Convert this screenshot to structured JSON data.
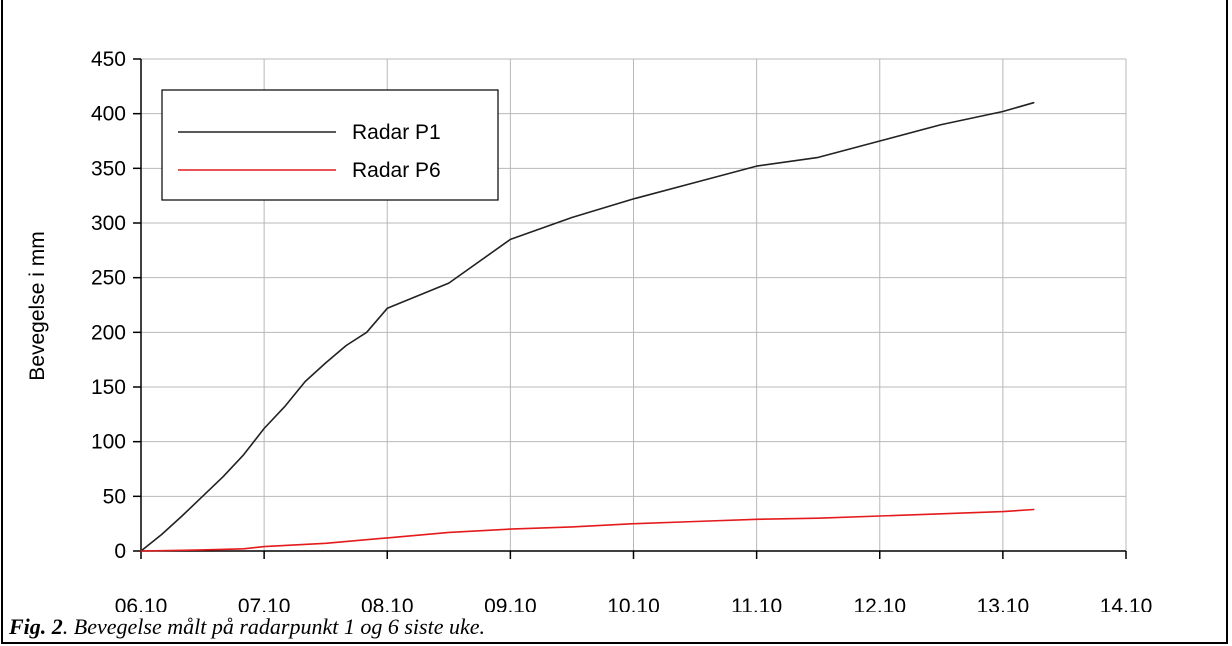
{
  "caption": {
    "label": "Fig. 2",
    "text": ". Bevegelse målt på radarpunkt 1 og 6 siste uke."
  },
  "chart_data": {
    "type": "line",
    "title": "",
    "xlabel": "",
    "ylabel": "Bevegelse i mm",
    "x_tick_labels": [
      "06.10",
      "07.10",
      "08.10",
      "09.10",
      "10.10",
      "11.10",
      "12.10",
      "13.10",
      "14.10"
    ],
    "y_ticks": [
      0,
      50,
      100,
      150,
      200,
      250,
      300,
      350,
      400,
      450
    ],
    "xlim": [
      "06.10",
      "14.10"
    ],
    "ylim": [
      0,
      450
    ],
    "grid": true,
    "legend_position": "top-left",
    "series": [
      {
        "name": "Radar P1",
        "color": "#222222",
        "points": [
          [
            "06.10 00:00",
            0
          ],
          [
            "06.10 04:00",
            15
          ],
          [
            "06.10 08:00",
            32
          ],
          [
            "06.10 12:00",
            50
          ],
          [
            "06.10 16:00",
            68
          ],
          [
            "06.10 20:00",
            88
          ],
          [
            "07.10 00:00",
            112
          ],
          [
            "07.10 04:00",
            132
          ],
          [
            "07.10 08:00",
            155
          ],
          [
            "07.10 12:00",
            172
          ],
          [
            "07.10 16:00",
            188
          ],
          [
            "07.10 20:00",
            200
          ],
          [
            "08.10 00:00",
            222
          ],
          [
            "08.10 12:00",
            245
          ],
          [
            "09.10 00:00",
            285
          ],
          [
            "09.10 12:00",
            305
          ],
          [
            "10.10 00:00",
            322
          ],
          [
            "10.10 12:00",
            337
          ],
          [
            "11.10 00:00",
            352
          ],
          [
            "11.10 12:00",
            360
          ],
          [
            "12.10 00:00",
            375
          ],
          [
            "12.10 12:00",
            390
          ],
          [
            "13.10 00:00",
            402
          ],
          [
            "13.10 06:00",
            410
          ]
        ]
      },
      {
        "name": "Radar P6",
        "color": "#e41a1c",
        "points": [
          [
            "06.10 00:00",
            0
          ],
          [
            "06.10 12:00",
            1
          ],
          [
            "06.10 20:00",
            2
          ],
          [
            "07.10 00:00",
            4
          ],
          [
            "07.10 12:00",
            7
          ],
          [
            "08.10 00:00",
            12
          ],
          [
            "08.10 12:00",
            17
          ],
          [
            "09.10 00:00",
            20
          ],
          [
            "09.10 12:00",
            22
          ],
          [
            "10.10 00:00",
            25
          ],
          [
            "10.10 12:00",
            27
          ],
          [
            "11.10 00:00",
            29
          ],
          [
            "11.10 12:00",
            30
          ],
          [
            "12.10 00:00",
            32
          ],
          [
            "12.10 12:00",
            34
          ],
          [
            "13.10 00:00",
            36
          ],
          [
            "13.10 06:00",
            38
          ]
        ]
      }
    ]
  }
}
